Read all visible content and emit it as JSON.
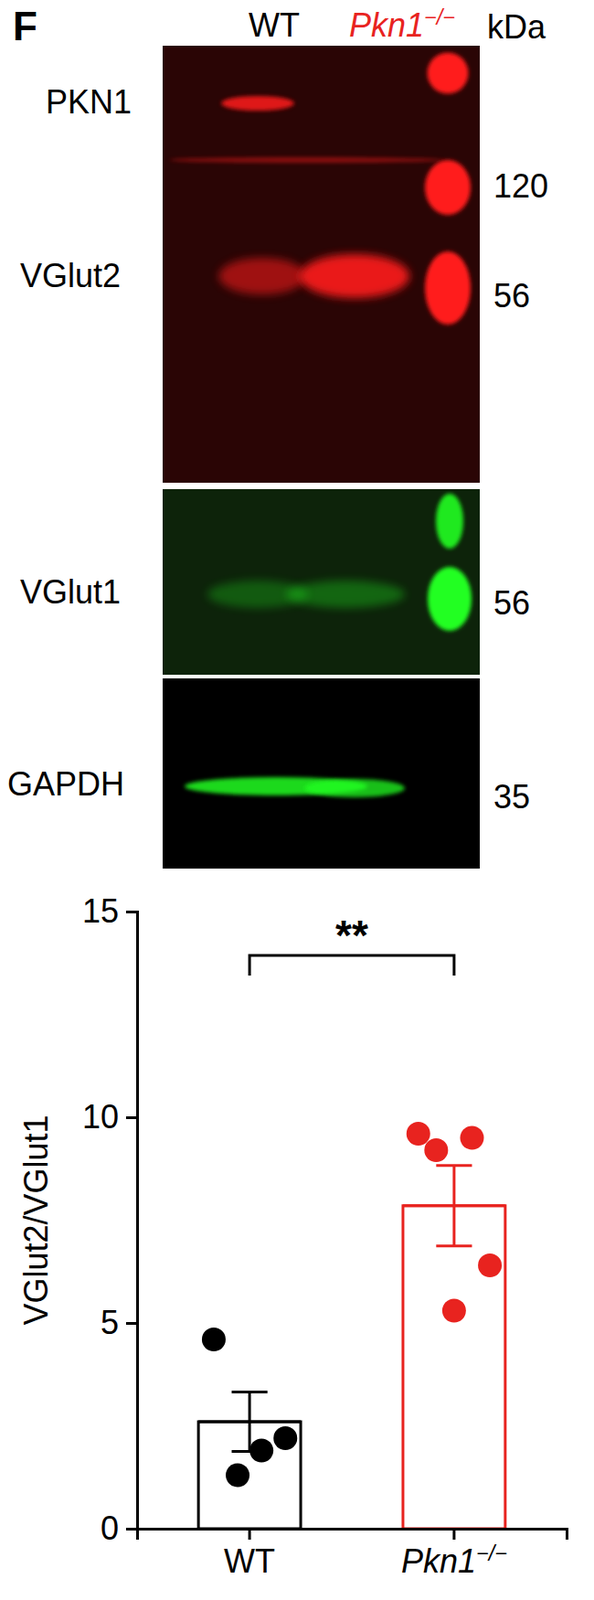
{
  "panel_label": "F",
  "blot": {
    "lanes": [
      "WT",
      "Pkn1−/−"
    ],
    "lane_colors": [
      "#000000",
      "#e8231f"
    ],
    "unit": "kDa",
    "rows": [
      "PKN1",
      "VGlut2",
      "VGlut1",
      "GAPDH"
    ],
    "markers": [
      120,
      56,
      56,
      35
    ]
  },
  "chart_data": {
    "type": "bar",
    "categories": [
      "WT",
      "Pkn1−/−"
    ],
    "values": [
      2.6,
      7.85
    ],
    "errors": [
      0.72,
      0.98
    ],
    "points": [
      [
        4.6,
        2.2,
        1.9,
        1.3
      ],
      [
        9.6,
        9.5,
        9.2,
        6.4,
        5.3
      ]
    ],
    "colors": [
      "#000000",
      "#e8231f"
    ],
    "y_label": "VGlut2/VGlut1",
    "ylim": [
      0,
      15
    ],
    "yticks": [
      0,
      5,
      10,
      15
    ],
    "annotations": [
      {
        "text": "**"
      }
    ]
  }
}
